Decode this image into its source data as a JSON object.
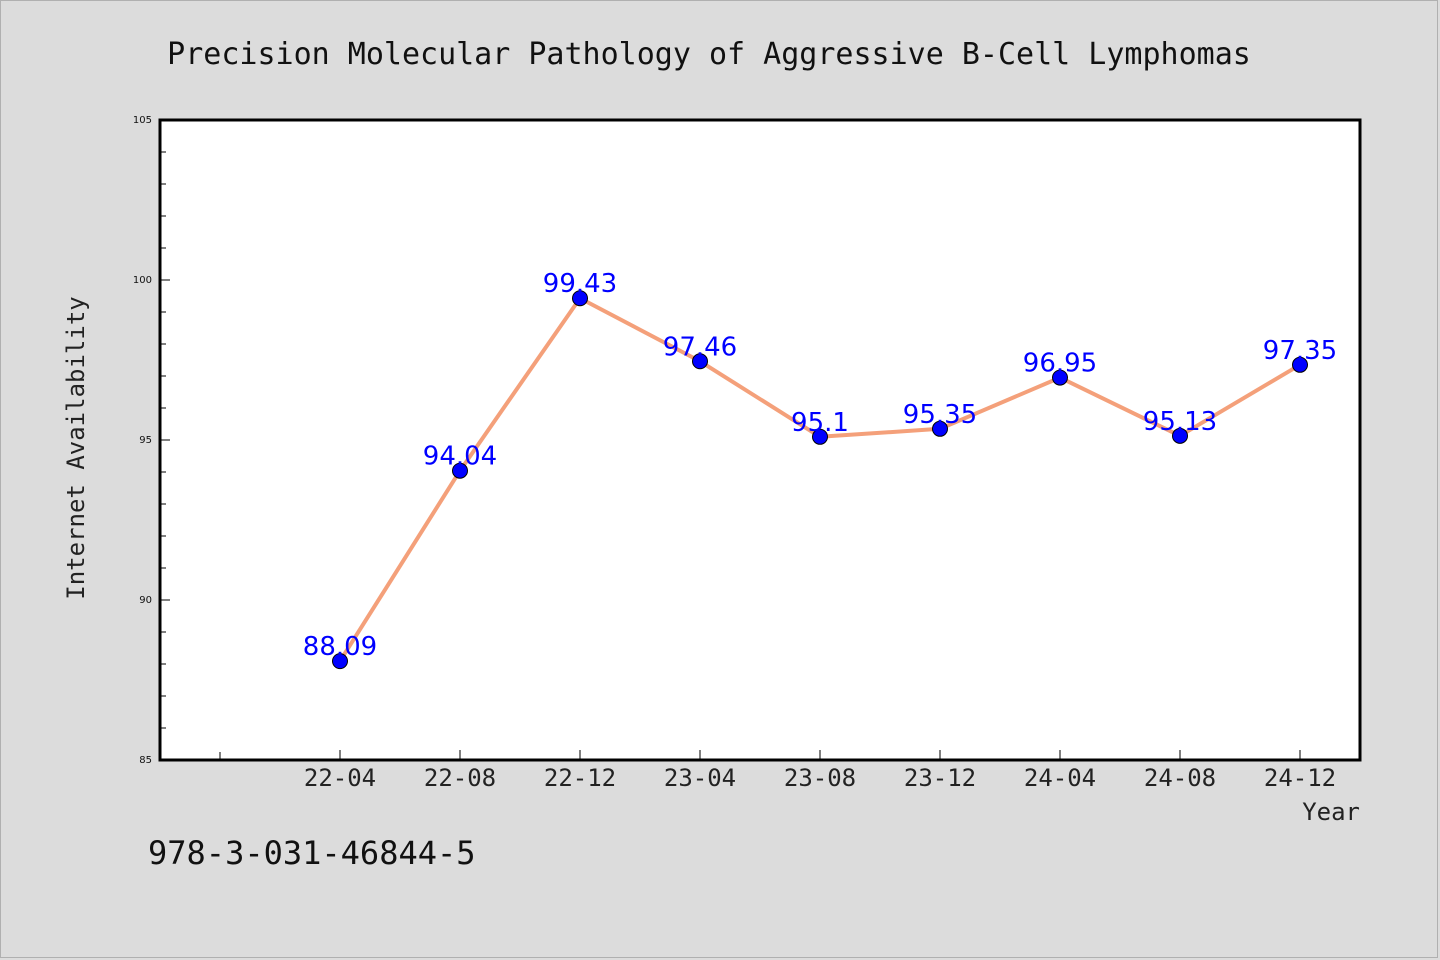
{
  "chart_data": {
    "type": "line",
    "title": "Precision Molecular Pathology of Aggressive B-Cell Lymphomas",
    "xlabel": "Year",
    "ylabel": "Internet Availability",
    "categories": [
      "22-04",
      "22-08",
      "22-12",
      "23-04",
      "23-08",
      "23-12",
      "24-04",
      "24-08",
      "24-12"
    ],
    "series": [
      {
        "values": [
          88.09,
          94.04,
          99.43,
          97.46,
          95.1,
          95.35,
          96.95,
          95.13,
          97.35
        ],
        "labels": [
          "88.09",
          "94.04",
          "99.43",
          "97.46",
          "95.1",
          "95.35",
          "96.95",
          "95.13",
          "97.35"
        ]
      }
    ],
    "ylim": [
      85,
      105
    ],
    "yticks": [
      "85",
      "90",
      "95",
      "100",
      "105"
    ],
    "grid": false,
    "line_color": "#f4a07a",
    "marker_color": "#0000ff",
    "label_color": "#0000ff"
  },
  "footnote": "978-3-031-46844-5"
}
